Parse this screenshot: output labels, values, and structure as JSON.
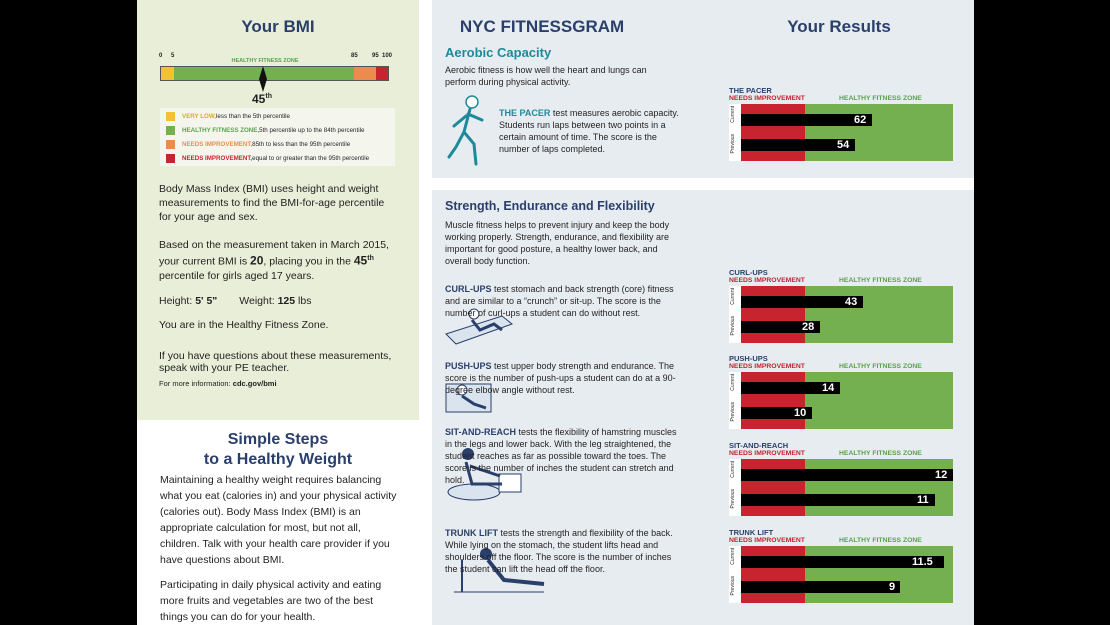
{
  "bmi": {
    "title": "Your BMI",
    "scale_ticks": [
      "0",
      "5",
      "85",
      "95",
      "100"
    ],
    "zone_label": "HEALTHY FITNESS ZONE",
    "marker": "45",
    "marker_sup": "th",
    "marker_value": 45,
    "legend": [
      {
        "name": "VERY LOW,",
        "desc": " less than the 5th percentile",
        "color": "#f2c232",
        "name_color": "#e0a81e"
      },
      {
        "name": "HEALTHY FITNESS ZONE,",
        "desc": " 5th percentile up to the 84th percentile",
        "color": "#74b050",
        "name_color": "#5ba14d"
      },
      {
        "name": "NEEDS IMPROVEMENT,",
        "desc": " 85th to less than the 95th percentile",
        "color": "#ed8b4e",
        "name_color": "#ed8b4e"
      },
      {
        "name": "NEEDS IMPROVEMENT,",
        "desc": " equal to or greater than the 95th percentile",
        "color": "#c8242f",
        "name_color": "#c8242f"
      }
    ],
    "para1": "Body Mass Index (BMI) uses height and weight measurements to find the BMI-for-age percentile for your age and sex.",
    "para2_a": "Based on the measurement taken in March 2015, your current BMI is ",
    "para2_bmi": "20",
    "para2_b": ", placing you in the ",
    "para2_pct": "45",
    "para2_sup": "th",
    "para2_c": " percentile for girls aged 17 years.",
    "height_label": "Height: ",
    "height_value": "5' 5\"",
    "weight_label": "Weight: ",
    "weight_value": "125",
    "weight_unit": " lbs",
    "zone_text": "You are in the Healthy Fitness Zone.",
    "questions": "If you have questions about these measurements, speak with your PE teacher.",
    "more_info_label": "For more information: ",
    "more_info_link": "cdc.gov/bmi"
  },
  "steps": {
    "title_line1": "Simple Steps",
    "title_line2": "to a Healthy Weight",
    "para1": "Maintaining a healthy weight requires balancing what you eat (calories in) and your physical activity (calories out). Body Mass Index (BMI) is an appropriate calculation for most, but not all, children. Talk with your health care provider if you have questions about BMI.",
    "para2": "Participating in daily physical activity and eating more fruits and vegetables are two of the best things you can do for your health."
  },
  "fitnessgram": {
    "title": "NYC FITNESSGRAM",
    "results_title": "Your Results",
    "aerobic_title": "Aerobic Capacity",
    "aerobic_intro": "Aerobic fitness is how well the heart and lungs can perform during physical activity.",
    "pacer_name": "THE PACER",
    "pacer_desc": " test measures aerobic capacity. Students run laps between two points in a certain amount of time. The score is the number of laps completed.",
    "strength_title": "Strength, Endurance and Flexibility",
    "strength_intro": "Muscle fitness helps to prevent injury and keep the body working properly. Strength, endurance, and flexibility are important for good posture, a healthy lower back, and overall body function.",
    "curl_name": "CURL-UPS",
    "curl_desc": " test stomach and back strength (core) fitness and are similar to a “crunch” or sit-up. The score is the number of curl-ups a student can do without rest.",
    "push_name": "PUSH-UPS",
    "push_desc": " test upper body strength and endurance. The score is the number of push-ups a student can do at a 90-degree elbow angle without rest.",
    "sit_name": "SIT-AND-REACH",
    "sit_desc": " tests the flexibility of hamstring muscles in the legs and lower back. With the leg straightened, the student reaches as far as possible toward the toes. The score is the number of inches the student can stretch and hold.",
    "trunk_name": "TRUNK LIFT",
    "trunk_desc": " tests the strength and flexibility of the back. While lying on the stomach, the student lifts head and shoulders off the floor. The score is the number of inches the student can lift the head off the floor."
  },
  "chart_data": [
    {
      "type": "bar",
      "title": "THE PACER",
      "zones": [
        "NEEDS IMPROVEMENT",
        "HEALTHY FITNESS ZONE"
      ],
      "categories": [
        "Current",
        "Previous"
      ],
      "values": [
        62,
        54
      ],
      "labels": [
        "62",
        "54"
      ],
      "xlim": [
        0,
        100
      ],
      "hfz_start": 34
    },
    {
      "type": "bar",
      "title": "CURL-UPS",
      "zones": [
        "NEEDS IMPROVEMENT",
        "HEALTHY FITNESS ZONE"
      ],
      "categories": [
        "Current",
        "Previous"
      ],
      "values": [
        43,
        28
      ],
      "labels": [
        "43",
        "28"
      ],
      "xlim": [
        0,
        75
      ],
      "hfz_start": 18
    },
    {
      "type": "bar",
      "title": "PUSH-UPS",
      "zones": [
        "NEEDS IMPROVEMENT",
        "HEALTHY FITNESS ZONE"
      ],
      "categories": [
        "Current",
        "Previous"
      ],
      "values": [
        14,
        10
      ],
      "labels": [
        "14",
        "10"
      ],
      "xlim": [
        0,
        30
      ],
      "hfz_start": 7
    },
    {
      "type": "bar",
      "title": "SIT-AND-REACH",
      "zones": [
        "NEEDS IMPROVEMENT",
        "HEALTHY FITNESS ZONE"
      ],
      "categories": [
        "Current",
        "Previous"
      ],
      "values": [
        12,
        11
      ],
      "labels": [
        "12",
        "11"
      ],
      "xlim": [
        0,
        12
      ],
      "hfz_start": 10
    },
    {
      "type": "bar",
      "title": "TRUNK LIFT",
      "zones": [
        "NEEDS IMPROVEMENT",
        "HEALTHY FITNESS ZONE"
      ],
      "categories": [
        "Current",
        "Previous"
      ],
      "values": [
        11.5,
        9
      ],
      "labels": [
        "11.5",
        "9"
      ],
      "xlim": [
        0,
        12
      ],
      "hfz_start": 9
    }
  ],
  "colors": {
    "navy": "#2a3f6b",
    "teal": "#1d8a9c",
    "green": "#74b050",
    "red": "#c8242f",
    "orange": "#ed8b4e",
    "yellow": "#f2c232"
  }
}
